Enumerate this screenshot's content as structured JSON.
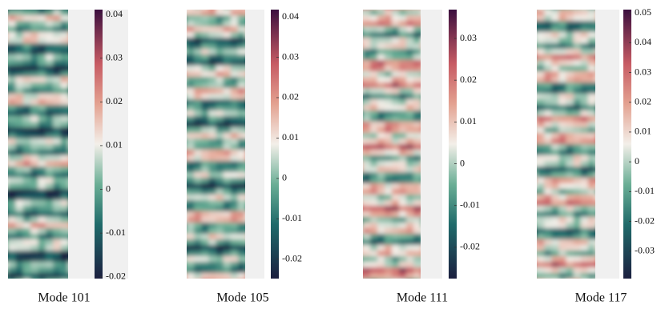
{
  "chart_data": [
    {
      "type": "heatmap",
      "title": "Mode 101",
      "clim": [
        -0.0204,
        0.0411
      ],
      "cticks": [
        -0.02,
        -0.01,
        0,
        0.01,
        0.02,
        0.03,
        0.04
      ]
    },
    {
      "type": "heatmap",
      "title": "Mode 105",
      "clim": [
        -0.0248,
        0.0418
      ],
      "cticks": [
        -0.02,
        -0.01,
        0,
        0.01,
        0.02,
        0.03,
        0.04
      ]
    },
    {
      "type": "heatmap",
      "title": "Mode 111",
      "clim": [
        -0.0275,
        0.0369
      ],
      "cticks": [
        -0.02,
        -0.01,
        0,
        0.01,
        0.02,
        0.03
      ]
    },
    {
      "type": "heatmap",
      "title": "Mode 117",
      "clim": [
        -0.0392,
        0.0511
      ],
      "cticks": [
        -0.03,
        -0.02,
        -0.01,
        0,
        0.01,
        0.02,
        0.03,
        0.04,
        0.05
      ]
    }
  ]
}
